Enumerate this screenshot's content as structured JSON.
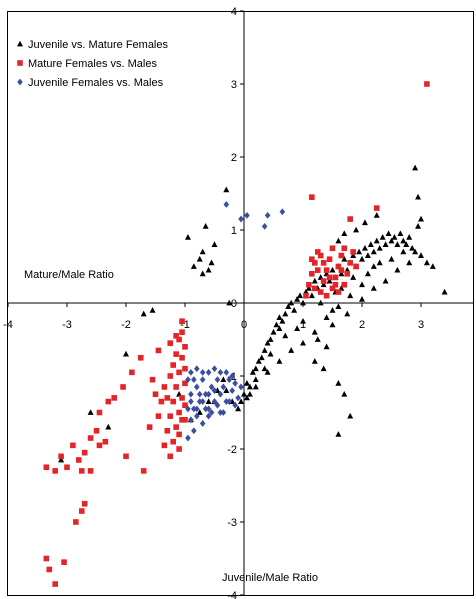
{
  "chart_data": {
    "type": "scatter",
    "title": "",
    "xlabel": "Juvenile/Male Ratio",
    "ylabel": "Mature/Male Ratio",
    "xlim": [
      -4,
      4
    ],
    "ylim": [
      -4,
      4
    ],
    "x_ticks": [
      "-4",
      "-3",
      "-2",
      "-1",
      "0",
      "1",
      "2",
      "3"
    ],
    "y_ticks": [
      "-4",
      "-3",
      "-2",
      "-1",
      "0",
      "1",
      "2",
      "3",
      "4"
    ],
    "grid": false,
    "legend_position": "top-left",
    "series": [
      {
        "name": "Juvenile vs. Mature Females",
        "marker": "triangle",
        "color": "#000000",
        "points": [
          [
            -3.1,
            -2.15
          ],
          [
            -2.6,
            -1.5
          ],
          [
            -2.3,
            -1.7
          ],
          [
            -2.0,
            -0.7
          ],
          [
            -1.7,
            -0.15
          ],
          [
            -1.55,
            -0.1
          ],
          [
            -1.05,
            -0.25
          ],
          [
            -0.85,
            0.5
          ],
          [
            -0.75,
            0.6
          ],
          [
            -0.7,
            0.4
          ],
          [
            -0.6,
            0.45
          ],
          [
            -0.55,
            0.55
          ],
          [
            -0.5,
            0.8
          ],
          [
            -0.7,
            0.7
          ],
          [
            -0.95,
            0.9
          ],
          [
            -0.65,
            1.05
          ],
          [
            -0.3,
            1.55
          ],
          [
            -0.25,
            0.0
          ],
          [
            -1.1,
            -1.25
          ],
          [
            -0.9,
            -1.6
          ],
          [
            -0.75,
            -1.5
          ],
          [
            -0.6,
            -1.35
          ],
          [
            -0.5,
            -1.35
          ],
          [
            -0.45,
            -1.2
          ],
          [
            -0.35,
            -1.05
          ],
          [
            -0.3,
            -1.2
          ],
          [
            -0.2,
            -1.35
          ],
          [
            -0.1,
            -1.45
          ],
          [
            -0.05,
            -1.35
          ],
          [
            0.0,
            -1.25
          ],
          [
            0.05,
            -1.1
          ],
          [
            0.1,
            -1.15
          ],
          [
            0.15,
            -0.95
          ],
          [
            0.2,
            -0.9
          ],
          [
            0.25,
            -0.8
          ],
          [
            0.3,
            -0.75
          ],
          [
            0.35,
            -0.65
          ],
          [
            0.4,
            -0.55
          ],
          [
            0.45,
            -0.5
          ],
          [
            0.5,
            -0.4
          ],
          [
            0.55,
            -0.3
          ],
          [
            0.6,
            -0.2
          ],
          [
            0.65,
            -0.25
          ],
          [
            0.7,
            -0.15
          ],
          [
            0.75,
            -0.05
          ],
          [
            0.8,
            0.0
          ],
          [
            0.85,
            -0.1
          ],
          [
            0.9,
            0.05
          ],
          [
            0.95,
            0.1
          ],
          [
            1.0,
            0.0
          ],
          [
            1.05,
            0.15
          ],
          [
            1.1,
            0.2
          ],
          [
            1.15,
            0.1
          ],
          [
            1.2,
            0.3
          ],
          [
            1.25,
            0.2
          ],
          [
            1.3,
            0.35
          ],
          [
            1.35,
            0.25
          ],
          [
            1.4,
            0.4
          ],
          [
            1.45,
            0.3
          ],
          [
            1.5,
            0.45
          ],
          [
            1.55,
            0.35
          ],
          [
            1.6,
            0.5
          ],
          [
            1.65,
            0.4
          ],
          [
            1.7,
            0.6
          ],
          [
            1.75,
            0.45
          ],
          [
            1.8,
            0.55
          ],
          [
            1.85,
            0.65
          ],
          [
            1.9,
            0.5
          ],
          [
            1.95,
            0.7
          ],
          [
            2.0,
            0.6
          ],
          [
            2.05,
            0.75
          ],
          [
            2.1,
            0.65
          ],
          [
            2.15,
            0.8
          ],
          [
            2.2,
            0.7
          ],
          [
            2.25,
            0.85
          ],
          [
            2.3,
            0.75
          ],
          [
            2.35,
            0.9
          ],
          [
            2.4,
            0.8
          ],
          [
            2.45,
            0.95
          ],
          [
            2.5,
            0.85
          ],
          [
            2.55,
            0.9
          ],
          [
            2.6,
            0.8
          ],
          [
            2.65,
            0.95
          ],
          [
            2.7,
            0.85
          ],
          [
            2.75,
            0.8
          ],
          [
            2.8,
            0.9
          ],
          [
            2.85,
            0.75
          ],
          [
            2.9,
            0.7
          ],
          [
            2.95,
            1.05
          ],
          [
            3.0,
            1.15
          ],
          [
            2.9,
            1.85
          ],
          [
            2.95,
            1.45
          ],
          [
            3.2,
            0.5
          ],
          [
            3.4,
            0.15
          ],
          [
            1.65,
            0.2
          ],
          [
            1.55,
            0.15
          ],
          [
            1.5,
            -0.1
          ],
          [
            1.3,
            0.0
          ],
          [
            1.0,
            -0.25
          ],
          [
            0.9,
            -0.35
          ],
          [
            0.7,
            -0.45
          ],
          [
            0.6,
            -0.35
          ],
          [
            0.45,
            -0.7
          ],
          [
            0.35,
            -0.9
          ],
          [
            0.2,
            -1.05
          ],
          [
            0.1,
            -1.25
          ],
          [
            1.6,
            -1.1
          ],
          [
            1.7,
            -1.25
          ],
          [
            1.8,
            -1.55
          ],
          [
            1.6,
            -1.8
          ],
          [
            1.35,
            -0.9
          ],
          [
            1.2,
            -0.8
          ],
          [
            1.4,
            -0.6
          ],
          [
            1.25,
            -0.5
          ],
          [
            1.5,
            -0.3
          ],
          [
            1.75,
            -0.15
          ],
          [
            2.0,
            0.05
          ],
          [
            2.2,
            0.2
          ],
          [
            2.4,
            0.3
          ],
          [
            2.6,
            0.45
          ],
          [
            2.8,
            0.55
          ],
          [
            3.0,
            0.65
          ],
          [
            3.1,
            0.55
          ],
          [
            2.25,
            1.2
          ],
          [
            2.05,
            1.1
          ],
          [
            1.9,
            1.0
          ],
          [
            1.7,
            0.95
          ],
          [
            1.6,
            0.85
          ],
          [
            1.85,
            0.35
          ],
          [
            2.1,
            0.4
          ],
          [
            2.3,
            0.55
          ],
          [
            2.5,
            0.6
          ],
          [
            2.7,
            0.7
          ],
          [
            2.2,
            0.5
          ],
          [
            2.0,
            0.25
          ],
          [
            1.8,
            0.1
          ],
          [
            1.6,
            -0.05
          ],
          [
            1.4,
            -0.2
          ],
          [
            1.2,
            -0.4
          ],
          [
            1.0,
            -0.55
          ],
          [
            0.8,
            -0.65
          ],
          [
            0.6,
            -0.8
          ],
          [
            0.4,
            -0.95
          ],
          [
            0.2,
            -1.15
          ],
          [
            0.05,
            -1.3
          ]
        ]
      },
      {
        "name": "Mature Females vs. Males",
        "marker": "square",
        "color": "#e3252a",
        "points": [
          [
            -3.35,
            -3.5
          ],
          [
            -3.3,
            -3.65
          ],
          [
            -3.2,
            -3.85
          ],
          [
            -3.05,
            -3.55
          ],
          [
            -3.35,
            -2.25
          ],
          [
            -3.2,
            -2.3
          ],
          [
            -3.1,
            -2.1
          ],
          [
            -3.0,
            -2.25
          ],
          [
            -2.9,
            -1.95
          ],
          [
            -2.8,
            -2.15
          ],
          [
            -2.75,
            -2.3
          ],
          [
            -2.7,
            -2.05
          ],
          [
            -2.6,
            -1.85
          ],
          [
            -2.5,
            -1.75
          ],
          [
            -2.45,
            -1.5
          ],
          [
            -2.3,
            -1.35
          ],
          [
            -2.2,
            -1.3
          ],
          [
            -2.05,
            -1.15
          ],
          [
            -1.9,
            -0.95
          ],
          [
            -1.75,
            -0.75
          ],
          [
            -2.45,
            -1.95
          ],
          [
            -2.35,
            -1.9
          ],
          [
            -2.6,
            -2.3
          ],
          [
            -2.75,
            -2.85
          ],
          [
            -2.85,
            -3.0
          ],
          [
            -2.7,
            -2.75
          ],
          [
            -2.0,
            -2.1
          ],
          [
            -1.7,
            -2.3
          ],
          [
            -1.6,
            -1.7
          ],
          [
            -1.45,
            -1.55
          ],
          [
            -1.4,
            -1.35
          ],
          [
            -1.35,
            -1.15
          ],
          [
            -1.3,
            -1.3
          ],
          [
            -1.25,
            -1.0
          ],
          [
            -1.2,
            -0.85
          ],
          [
            -1.15,
            -0.7
          ],
          [
            -1.1,
            -0.5
          ],
          [
            -1.05,
            -0.4
          ],
          [
            -1.0,
            -0.6
          ],
          [
            -1.05,
            -0.75
          ],
          [
            -1.1,
            -0.95
          ],
          [
            -1.15,
            -1.15
          ],
          [
            -1.2,
            -1.35
          ],
          [
            -1.25,
            -1.55
          ],
          [
            -1.3,
            -1.75
          ],
          [
            -1.35,
            -1.95
          ],
          [
            -1.0,
            -1.1
          ],
          [
            -1.05,
            -1.3
          ],
          [
            -1.1,
            -1.5
          ],
          [
            -1.15,
            -1.7
          ],
          [
            -1.2,
            -1.9
          ],
          [
            -1.25,
            -2.1
          ],
          [
            -1.0,
            -1.4
          ],
          [
            -1.05,
            -1.6
          ],
          [
            -1.1,
            -1.8
          ],
          [
            -1.0,
            -0.9
          ],
          [
            -1.05,
            -0.25
          ],
          [
            -1.15,
            -0.45
          ],
          [
            -1.25,
            -0.55
          ],
          [
            -1.45,
            -0.65
          ],
          [
            -1.55,
            -1.05
          ],
          [
            -1.5,
            -1.25
          ],
          [
            -1.0,
            -1.6
          ],
          [
            -1.1,
            -2.0
          ],
          [
            1.05,
            0.1
          ],
          [
            1.1,
            0.25
          ],
          [
            1.15,
            0.4
          ],
          [
            1.2,
            0.55
          ],
          [
            1.25,
            0.7
          ],
          [
            1.3,
            0.15
          ],
          [
            1.35,
            0.3
          ],
          [
            1.4,
            0.45
          ],
          [
            1.45,
            0.6
          ],
          [
            1.5,
            0.2
          ],
          [
            1.55,
            0.35
          ],
          [
            1.6,
            0.5
          ],
          [
            1.65,
            0.65
          ],
          [
            1.7,
            0.25
          ],
          [
            1.75,
            0.4
          ],
          [
            1.8,
            0.55
          ],
          [
            1.85,
            0.7
          ],
          [
            1.6,
            0.15
          ],
          [
            1.5,
            0.75
          ],
          [
            1.3,
            0.65
          ],
          [
            1.2,
            0.2
          ],
          [
            1.4,
            0.1
          ],
          [
            1.7,
            0.75
          ],
          [
            1.9,
            0.5
          ],
          [
            1.15,
            0.6
          ],
          [
            1.25,
            0.45
          ],
          [
            1.35,
            0.55
          ],
          [
            1.45,
            0.35
          ],
          [
            1.55,
            0.25
          ],
          [
            1.65,
            0.45
          ],
          [
            1.15,
            1.45
          ],
          [
            1.8,
            1.15
          ],
          [
            2.25,
            1.3
          ],
          [
            3.1,
            3.0
          ]
        ]
      },
      {
        "name": "Juvenile Females vs. Males",
        "marker": "diamond",
        "color": "#3b4ea0",
        "points": [
          [
            -0.3,
            1.35
          ],
          [
            -0.05,
            1.15
          ],
          [
            0.05,
            1.2
          ],
          [
            0.35,
            1.05
          ],
          [
            0.4,
            1.2
          ],
          [
            0.65,
            1.25
          ],
          [
            -0.95,
            -1.05
          ],
          [
            -0.9,
            -1.25
          ],
          [
            -0.85,
            -1.45
          ],
          [
            -0.8,
            -1.15
          ],
          [
            -0.75,
            -1.35
          ],
          [
            -0.7,
            -1.05
          ],
          [
            -0.65,
            -1.25
          ],
          [
            -0.6,
            -1.45
          ],
          [
            -0.55,
            -1.15
          ],
          [
            -0.5,
            -1.35
          ],
          [
            -0.45,
            -1.05
          ],
          [
            -0.4,
            -1.25
          ],
          [
            -0.35,
            -1.15
          ],
          [
            -0.3,
            -1.35
          ],
          [
            -0.25,
            -1.05
          ],
          [
            -0.2,
            -1.2
          ],
          [
            -0.15,
            -1.1
          ],
          [
            -0.1,
            -1.3
          ],
          [
            -0.05,
            -1.15
          ],
          [
            -0.9,
            -1.6
          ],
          [
            -0.85,
            -1.75
          ],
          [
            -0.8,
            -1.55
          ],
          [
            -0.7,
            -1.65
          ],
          [
            -0.6,
            -1.55
          ],
          [
            -0.95,
            -1.85
          ],
          [
            -0.9,
            -0.95
          ],
          [
            -0.8,
            -0.9
          ],
          [
            -0.7,
            -0.95
          ],
          [
            -0.6,
            -0.95
          ],
          [
            -0.5,
            -0.9
          ],
          [
            -0.4,
            -0.95
          ],
          [
            -0.3,
            -0.95
          ],
          [
            -0.2,
            -1.0
          ],
          [
            -0.95,
            -1.45
          ],
          [
            -0.85,
            -1.05
          ],
          [
            -0.75,
            -1.25
          ],
          [
            -0.65,
            -1.45
          ],
          [
            -0.55,
            -1.5
          ],
          [
            -0.45,
            -1.4
          ],
          [
            -0.35,
            -1.5
          ],
          [
            -0.25,
            -1.35
          ],
          [
            -0.15,
            -1.4
          ],
          [
            -0.9,
            -1.35
          ],
          [
            -0.8,
            -1.45
          ],
          [
            -0.7,
            -1.35
          ],
          [
            -0.6,
            -1.25
          ],
          [
            -0.5,
            -1.2
          ],
          [
            -0.4,
            -1.5
          ]
        ]
      }
    ]
  }
}
